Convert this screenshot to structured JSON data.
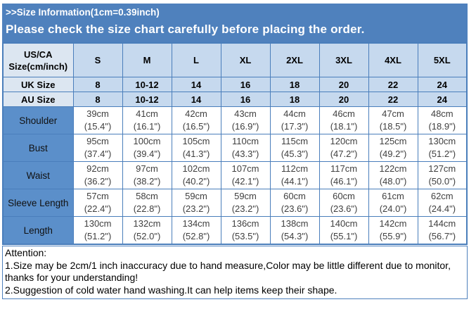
{
  "banner": {
    "title": ">>Size Information(1cm=0.39inch)",
    "subtitle": "Please check the size chart carefully before placing the order."
  },
  "size_chart": {
    "corner_header": {
      "line1": "US/CA",
      "line2": "Size(cm/inch)"
    },
    "size_columns": [
      "S",
      "M",
      "L",
      "XL",
      "2XL",
      "3XL",
      "4XL",
      "5XL"
    ],
    "region_rows": [
      {
        "label": "UK Size",
        "values": [
          "8",
          "10-12",
          "14",
          "16",
          "18",
          "20",
          "22",
          "24"
        ]
      },
      {
        "label": "AU Size",
        "values": [
          "8",
          "10-12",
          "14",
          "16",
          "18",
          "20",
          "22",
          "24"
        ]
      }
    ],
    "measurement_rows": [
      {
        "label": "Shoulder",
        "values": [
          {
            "cm": "39cm",
            "inch": "(15.4\")"
          },
          {
            "cm": "41cm",
            "inch": "(16.1\")"
          },
          {
            "cm": "42cm",
            "inch": "(16.5\")"
          },
          {
            "cm": "43cm",
            "inch": "(16.9\")"
          },
          {
            "cm": "44cm",
            "inch": "(17.3\")"
          },
          {
            "cm": "46cm",
            "inch": "(18.1\")"
          },
          {
            "cm": "47cm",
            "inch": "(18.5\")"
          },
          {
            "cm": "48cm",
            "inch": "(18.9\")"
          }
        ]
      },
      {
        "label": "Bust",
        "values": [
          {
            "cm": "95cm",
            "inch": "(37.4\")"
          },
          {
            "cm": "100cm",
            "inch": "(39.4\")"
          },
          {
            "cm": "105cm",
            "inch": "(41.3\")"
          },
          {
            "cm": "110cm",
            "inch": "(43.3\")"
          },
          {
            "cm": "115cm",
            "inch": "(45.3\")"
          },
          {
            "cm": "120cm",
            "inch": "(47.2\")"
          },
          {
            "cm": "125cm",
            "inch": "(49.2\")"
          },
          {
            "cm": "130cm",
            "inch": "(51.2\")"
          }
        ]
      },
      {
        "label": "Waist",
        "values": [
          {
            "cm": "92cm",
            "inch": "(36.2\")"
          },
          {
            "cm": "97cm",
            "inch": "(38.2\")"
          },
          {
            "cm": "102cm",
            "inch": "(40.2\")"
          },
          {
            "cm": "107cm",
            "inch": "(42.1\")"
          },
          {
            "cm": "112cm",
            "inch": "(44.1\")"
          },
          {
            "cm": "117cm",
            "inch": "(46.1\")"
          },
          {
            "cm": "122cm",
            "inch": "(48.0\")"
          },
          {
            "cm": "127cm",
            "inch": "(50.0\")"
          }
        ]
      },
      {
        "label": "Sleeve Length",
        "values": [
          {
            "cm": "57cm",
            "inch": "(22.4\")"
          },
          {
            "cm": "58cm",
            "inch": "(22.8\")"
          },
          {
            "cm": "59cm",
            "inch": "(23.2\")"
          },
          {
            "cm": "59cm",
            "inch": "(23.2\")"
          },
          {
            "cm": "60cm",
            "inch": "(23.6\")"
          },
          {
            "cm": "60cm",
            "inch": "(23.6\")"
          },
          {
            "cm": "61cm",
            "inch": "(24.0\")"
          },
          {
            "cm": "62cm",
            "inch": "(24.4\")"
          }
        ]
      },
      {
        "label": "Length",
        "values": [
          {
            "cm": "130cm",
            "inch": "(51.2\")"
          },
          {
            "cm": "132cm",
            "inch": "(52.0\")"
          },
          {
            "cm": "134cm",
            "inch": "(52.8\")"
          },
          {
            "cm": "136cm",
            "inch": "(53.5\")"
          },
          {
            "cm": "138cm",
            "inch": "(54.3\")"
          },
          {
            "cm": "140cm",
            "inch": "(55.1\")"
          },
          {
            "cm": "142cm",
            "inch": "(55.9\")"
          },
          {
            "cm": "144cm",
            "inch": "(56.7\")"
          }
        ]
      }
    ]
  },
  "attention": {
    "title": "Attention:",
    "notes": [
      "1.Size may be 2cm/1 inch inaccuracy due to hand measure,Color may be little different due to monitor, thanks for your understanding!",
      "2.Suggestion of cold water hand washing.It can help items keep their shape."
    ]
  },
  "colors": {
    "banner_bg": "#4f81bd",
    "banner_text": "#ffffff",
    "header_label_bg": "#dce6f1",
    "header_value_bg": "#c6d9ee",
    "measurement_label_bg": "#5b8fca",
    "grid_border": "#4a7ebb",
    "cell_text": "#404040",
    "attention_border": "#4f81bd"
  }
}
